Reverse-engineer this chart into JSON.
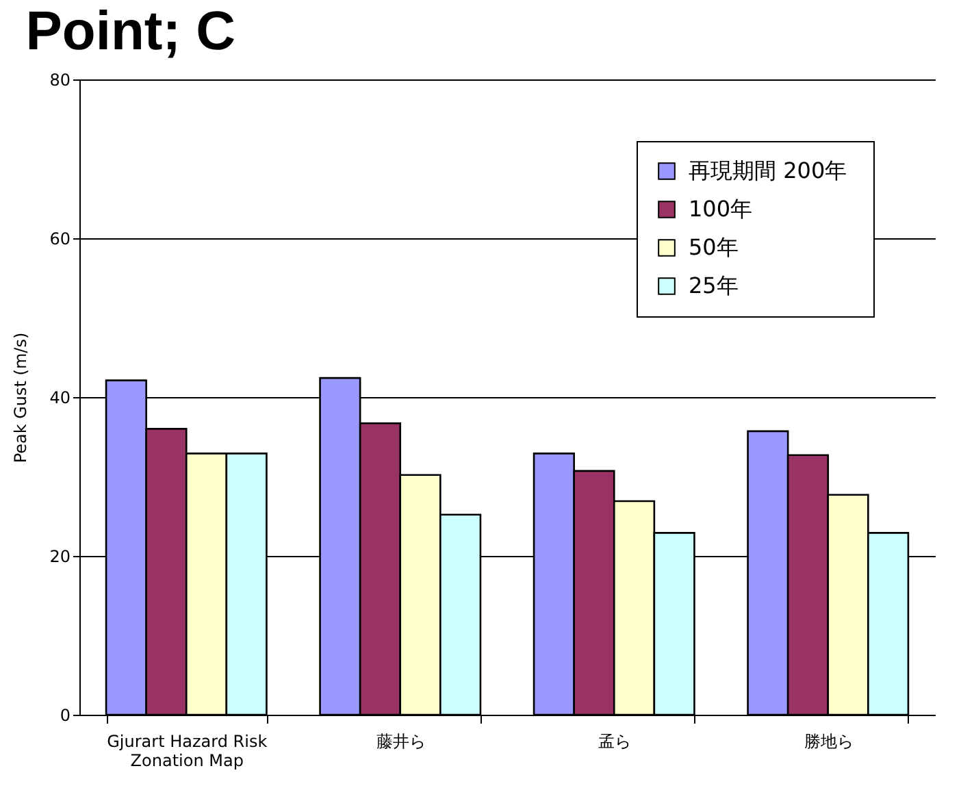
{
  "chart_data": {
    "type": "bar",
    "title": "Point; C",
    "ylabel": "Peak Gust (m/s)",
    "categories": [
      "Gjurart Hazard   Risk\nZonation Map",
      "藤井ら",
      "孟ら",
      "勝地ら"
    ],
    "series": [
      {
        "name": "再現期間  200年",
        "color": "#9999ff",
        "values": [
          42.1,
          42.4,
          32.9,
          35.7
        ]
      },
      {
        "name": "100年",
        "color": "#993366",
        "values": [
          36.0,
          36.7,
          30.7,
          32.7
        ]
      },
      {
        "name": "50年",
        "color": "#ffffcc",
        "values": [
          32.9,
          30.2,
          26.9,
          27.7
        ]
      },
      {
        "name": "25年",
        "color": "#ccffff",
        "values": [
          32.9,
          25.2,
          22.9,
          22.9
        ]
      }
    ],
    "ylim": [
      0,
      80
    ],
    "yticks": [
      0,
      20,
      40,
      60,
      80
    ],
    "grid": "y",
    "legend": "top right"
  }
}
